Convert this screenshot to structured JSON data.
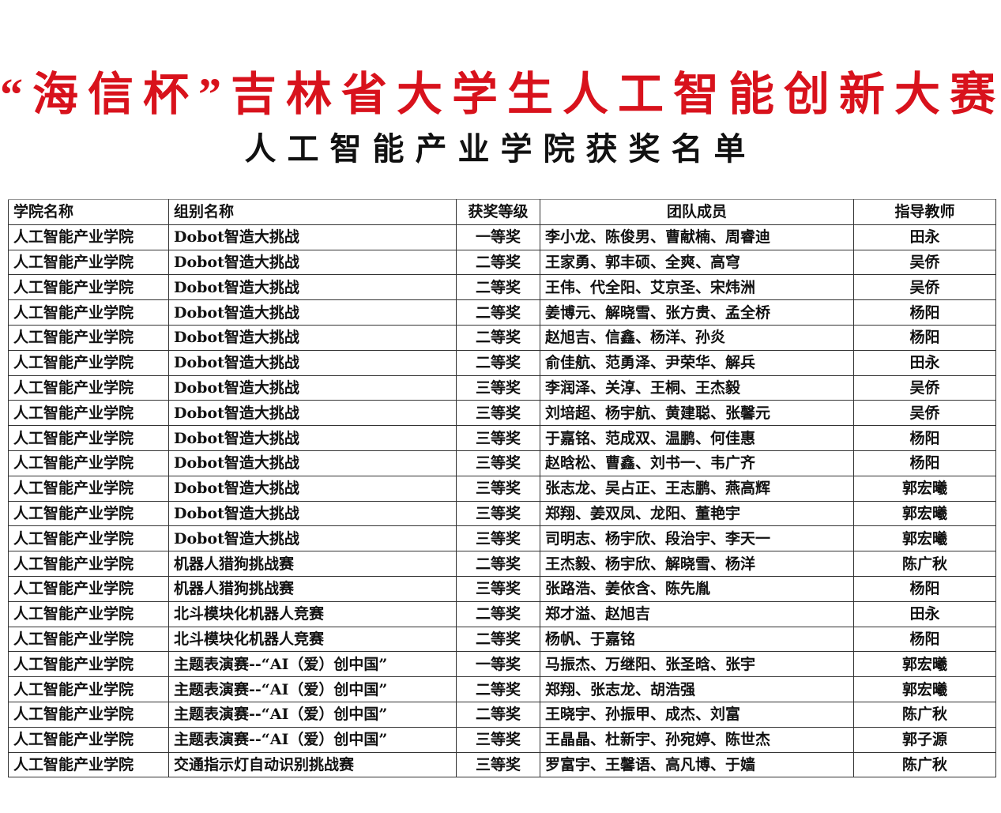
{
  "header": {
    "title": "“海信杯”吉林省大学生人工智能创新大赛",
    "subtitle": "人工智能产业学院获奖名单",
    "title_color": "#d8121c"
  },
  "table": {
    "columns": [
      "学院名称",
      "组别名称",
      "获奖等级",
      "团队成员",
      "指导教师"
    ],
    "rows": [
      [
        "人工智能产业学院",
        "Dobot智造大挑战",
        "一等奖",
        "李小龙、陈俊男、曹献楠、周睿迪",
        "田永"
      ],
      [
        "人工智能产业学院",
        "Dobot智造大挑战",
        "二等奖",
        "王家勇、郭丰硕、全爽、高穹",
        "吴侨"
      ],
      [
        "人工智能产业学院",
        "Dobot智造大挑战",
        "二等奖",
        "王伟、代全阳、艾京圣、宋炜洲",
        "吴侨"
      ],
      [
        "人工智能产业学院",
        "Dobot智造大挑战",
        "二等奖",
        "姜博元、解晓雪、张方贵、孟全桥",
        "杨阳"
      ],
      [
        "人工智能产业学院",
        "Dobot智造大挑战",
        "二等奖",
        "赵旭吉、信鑫、杨洋、孙炎",
        "杨阳"
      ],
      [
        "人工智能产业学院",
        "Dobot智造大挑战",
        "二等奖",
        "俞佳航、范勇泽、尹荣华、解兵",
        "田永"
      ],
      [
        "人工智能产业学院",
        "Dobot智造大挑战",
        "三等奖",
        "李润泽、关淳、王桐、王杰毅",
        "吴侨"
      ],
      [
        "人工智能产业学院",
        "Dobot智造大挑战",
        "三等奖",
        "刘培超、杨宇航、黄建聪、张馨元",
        "吴侨"
      ],
      [
        "人工智能产业学院",
        "Dobot智造大挑战",
        "三等奖",
        "于嘉铭、范成双、温鹏、何佳惠",
        "杨阳"
      ],
      [
        "人工智能产业学院",
        "Dobot智造大挑战",
        "三等奖",
        "赵晗松、曹鑫、刘书一、韦广齐",
        "杨阳"
      ],
      [
        "人工智能产业学院",
        "Dobot智造大挑战",
        "三等奖",
        "张志龙、吴占正、王志鹏、燕高辉",
        "郭宏曦"
      ],
      [
        "人工智能产业学院",
        "Dobot智造大挑战",
        "三等奖",
        "郑翔、姜双凤、龙阳、董艳宇",
        "郭宏曦"
      ],
      [
        "人工智能产业学院",
        "Dobot智造大挑战",
        "三等奖",
        "司明志、杨宇欣、段治宇、李天一",
        "郭宏曦"
      ],
      [
        "人工智能产业学院",
        "机器人猎狗挑战赛",
        "二等奖",
        "王杰毅、杨宇欣、解晓雪、杨洋",
        "陈广秋"
      ],
      [
        "人工智能产业学院",
        "机器人猎狗挑战赛",
        "三等奖",
        "张路浩、姜依含、陈先胤",
        "杨阳"
      ],
      [
        "人工智能产业学院",
        "北斗模块化机器人竞赛",
        "二等奖",
        "郑才溢、赵旭吉",
        "田永"
      ],
      [
        "人工智能产业学院",
        "北斗模块化机器人竞赛",
        "二等奖",
        "杨帆、于嘉铭",
        "杨阳"
      ],
      [
        "人工智能产业学院",
        "主题表演赛--“AI（爱）创中国”",
        "一等奖",
        "马振杰、万继阳、张圣晗、张宇",
        "郭宏曦"
      ],
      [
        "人工智能产业学院",
        "主题表演赛--“AI（爱）创中国”",
        "二等奖",
        "郑翔、张志龙、胡浩强",
        "郭宏曦"
      ],
      [
        "人工智能产业学院",
        "主题表演赛--“AI（爱）创中国”",
        "二等奖",
        "王晓宇、孙振甲、成杰、刘富",
        "陈广秋"
      ],
      [
        "人工智能产业学院",
        "主题表演赛--“AI（爱）创中国”",
        "三等奖",
        "王晶晶、杜新宇、孙宛婷、陈世杰",
        "郭子源"
      ],
      [
        "人工智能产业学院",
        "交通指示灯自动识别挑战赛",
        "三等奖",
        "罗富宇、王馨语、高凡博、于嫱",
        "陈广秋"
      ]
    ]
  }
}
